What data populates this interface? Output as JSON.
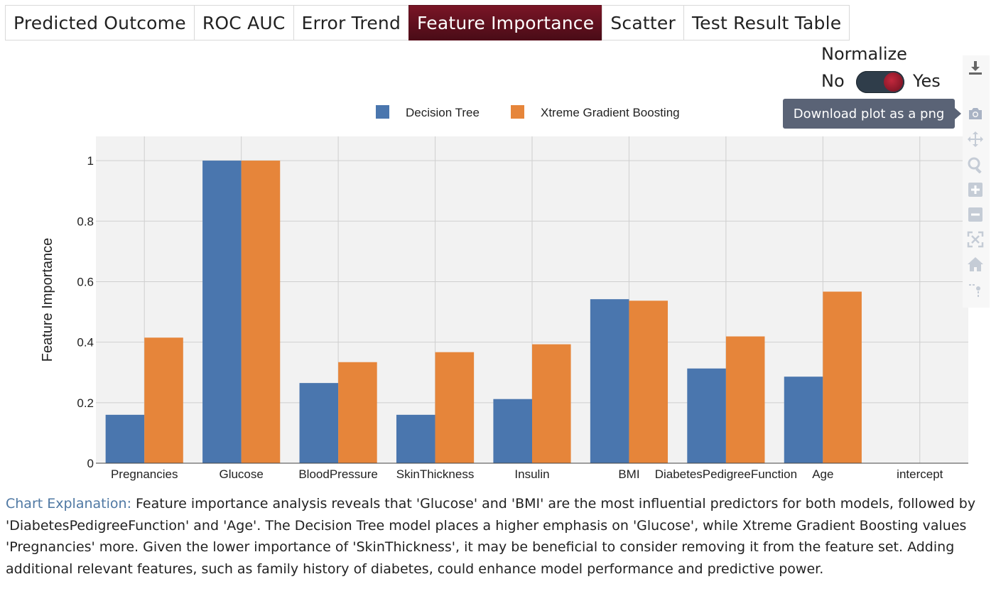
{
  "tabs": [
    {
      "label": "Predicted Outcome",
      "active": false
    },
    {
      "label": "ROC AUC",
      "active": false
    },
    {
      "label": "Error Trend",
      "active": false
    },
    {
      "label": "Feature Importance",
      "active": true
    },
    {
      "label": "Scatter",
      "active": false
    },
    {
      "label": "Test Result Table",
      "active": false
    }
  ],
  "normalize": {
    "title": "Normalize",
    "off_label": "No",
    "on_label": "Yes",
    "value": true
  },
  "tooltip": "Download plot as a png",
  "modebar_icons": [
    "download-icon",
    "camera-icon",
    "pan-icon",
    "zoom-icon",
    "zoom-in-icon",
    "zoom-out-icon",
    "autoscale-icon",
    "home-icon",
    "spike-lines-icon"
  ],
  "colors": {
    "decision_tree": "#4a76ae",
    "xgboost": "#e6853a",
    "plot_bg": "#f2f2f2",
    "active_tab": "#5e1020"
  },
  "chart_data": {
    "type": "bar",
    "categories": [
      "Pregnancies",
      "Glucose",
      "BloodPressure",
      "SkinThickness",
      "Insulin",
      "BMI",
      "DiabetesPedigreeFunction",
      "Age",
      "intercept"
    ],
    "series": [
      {
        "name": "Decision Tree",
        "values": [
          0.16,
          1.0,
          0.265,
          0.16,
          0.212,
          0.542,
          0.313,
          0.286,
          null
        ]
      },
      {
        "name": "Xtreme Gradient Boosting",
        "values": [
          0.415,
          1.0,
          0.334,
          0.367,
          0.393,
          0.537,
          0.419,
          0.567,
          null
        ]
      }
    ],
    "ylabel": "Feature Importance",
    "xlabel": "",
    "ylim": [
      0,
      1.08
    ],
    "yticks": [
      0,
      0.2,
      0.4,
      0.6,
      0.8,
      1
    ],
    "ytick_labels": [
      "0",
      "0.2",
      "0.4",
      "0.6",
      "0.8",
      "1"
    ],
    "legend_position": "top",
    "grid": true
  },
  "explanation": {
    "label": "Chart Explanation:",
    "text": "Feature importance analysis reveals that 'Glucose' and 'BMI' are the most influential predictors for both models, followed by 'DiabetesPedigreeFunction' and 'Age'. The Decision Tree model places a higher emphasis on 'Glucose', while Xtreme Gradient Boosting values 'Pregnancies' more. Given the lower importance of 'SkinThickness', it may be beneficial to consider removing it from the feature set. Adding additional relevant features, such as family history of diabetes, could enhance model performance and predictive power."
  }
}
